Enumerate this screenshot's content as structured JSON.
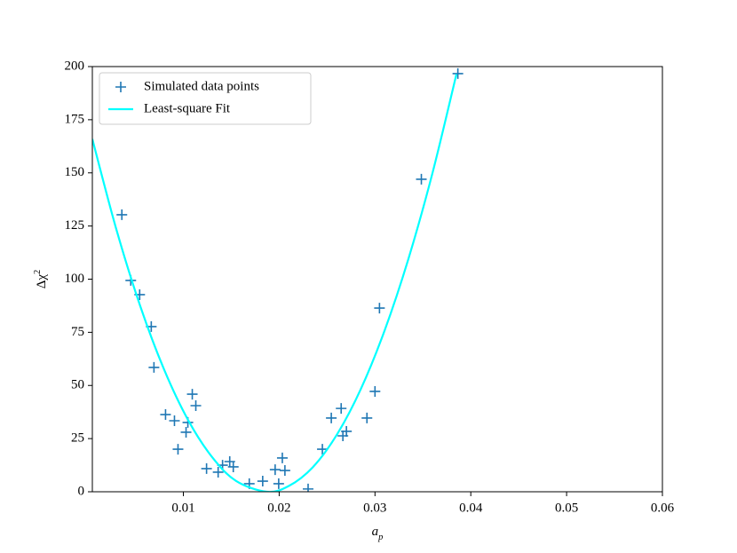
{
  "chart_data": {
    "type": "scatter-fit",
    "xlabel": "a_p",
    "ylabel": "Δχ^2",
    "xlim": [
      0.0005,
      0.06
    ],
    "ylim": [
      0,
      200
    ],
    "xticks": [
      0.01,
      0.02,
      0.03,
      0.04,
      0.05,
      0.06
    ],
    "yticks": [
      0,
      25,
      50,
      75,
      100,
      125,
      150,
      175,
      200
    ],
    "legend": "upper left",
    "series": [
      {
        "name": "Simulated data points",
        "color": "#1f77b4",
        "marker": "+",
        "x": [
          0.00358,
          0.00451,
          0.00544,
          0.00665,
          0.00693,
          0.00814,
          0.00907,
          0.00944,
          0.01028,
          0.01047,
          0.01093,
          0.0113,
          0.01242,
          0.01363,
          0.01409,
          0.01484,
          0.01521,
          0.01688,
          0.01828,
          0.01958,
          0.01995,
          0.02033,
          0.0206,
          0.02302,
          0.02451,
          0.02544,
          0.02647,
          0.02665,
          0.02702,
          0.02916,
          0.03,
          0.03047,
          0.03484,
          0.03865
        ],
        "values": [
          130.3,
          99.4,
          92.7,
          77.7,
          58.5,
          36.3,
          33.4,
          20.0,
          28.0,
          32.6,
          45.9,
          40.5,
          10.9,
          9.2,
          12.5,
          14.2,
          11.7,
          3.8,
          5.0,
          10.4,
          3.8,
          15.9,
          10.0,
          1.3,
          20.0,
          34.7,
          39.2,
          26.3,
          28.4,
          34.7,
          47.2,
          86.4,
          147.0,
          196.7
        ]
      },
      {
        "name": "Least-square Fit",
        "color": "#00ffff",
        "marker": "line",
        "x": [
          0.0005,
          0.003,
          0.0055,
          0.008,
          0.0105,
          0.013,
          0.0155,
          0.0187,
          0.021,
          0.0235,
          0.026,
          0.0285,
          0.031,
          0.0335,
          0.036,
          0.0385
        ],
        "values": [
          165.9,
          123.5,
          87.3,
          57.4,
          33.7,
          16.3,
          5.1,
          0,
          2.7,
          11.5,
          26.7,
          48.1,
          75.8,
          109.7,
          149.9,
          196.4
        ]
      }
    ]
  }
}
